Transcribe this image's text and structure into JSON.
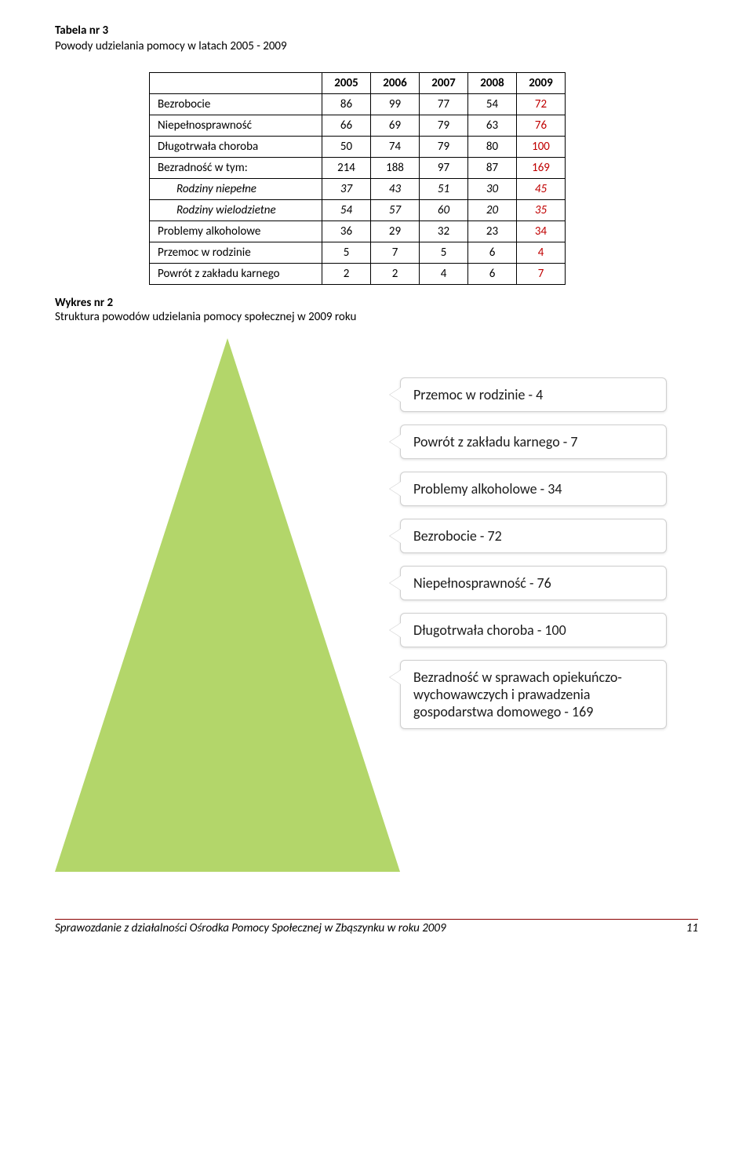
{
  "table_heading": "Tabela nr 3",
  "table_subheading": "Powody udzielania pomocy w latach 2005 - 2009",
  "table": {
    "columns": [
      "",
      "2005",
      "2006",
      "2007",
      "2008",
      "2009"
    ],
    "rows": [
      {
        "label": "Bezrobocie",
        "vals": [
          "86",
          "99",
          "77",
          "54",
          "72"
        ],
        "indent": false,
        "italic": false
      },
      {
        "label": "Niepełnosprawność",
        "vals": [
          "66",
          "69",
          "79",
          "63",
          "76"
        ],
        "indent": false,
        "italic": false
      },
      {
        "label": "Długotrwała choroba",
        "vals": [
          "50",
          "74",
          "79",
          "80",
          "100"
        ],
        "indent": false,
        "italic": false
      },
      {
        "label": "Bezradność w tym:",
        "vals": [
          "214",
          "188",
          "97",
          "87",
          "169"
        ],
        "indent": false,
        "italic": false
      },
      {
        "label": "Rodziny niepełne",
        "vals": [
          "37",
          "43",
          "51",
          "30",
          "45"
        ],
        "indent": true,
        "italic": true
      },
      {
        "label": "Rodziny wielodzietne",
        "vals": [
          "54",
          "57",
          "60",
          "20",
          "35"
        ],
        "indent": true,
        "italic": true
      },
      {
        "label": "Problemy alkoholowe",
        "vals": [
          "36",
          "29",
          "32",
          "23",
          "34"
        ],
        "indent": false,
        "italic": false
      },
      {
        "label": "Przemoc w rodzinie",
        "vals": [
          "5",
          "7",
          "5",
          "6",
          "4"
        ],
        "indent": false,
        "italic": false
      },
      {
        "label": "Powrót z zakładu karnego",
        "vals": [
          "2",
          "2",
          "4",
          "6",
          "7"
        ],
        "indent": false,
        "italic": false
      }
    ],
    "red_column_index": 4,
    "colors": {
      "red": "#c00000",
      "border": "#000000"
    }
  },
  "chart_heading": "Wykres nr  2",
  "chart_subheading": "Struktura powodów udzielania pomocy społecznej w 2009 roku",
  "pyramid": {
    "triangle_color": "#b3d66a",
    "callout_bg": "#ffffff",
    "callout_border": "#cfcfcf",
    "callout_shadow": "rgba(0,0,0,0.12)",
    "callout_fontsize": 18,
    "callout_text_color": "#1b1b1b",
    "items": [
      "Przemoc w rodzinie   -   4",
      "Powrót z zakładu  karnego  -  7",
      "Problemy alkoholowe  -  34",
      "Bezrobocie  -  72",
      "Niepełnosprawność  -  76",
      "Długotrwała choroba  -  100",
      "Bezradność w sprawach opiekuńczo-wychowawczych i prawadzenia gospodarstwa domowego      -     169"
    ]
  },
  "footer": {
    "text": "Sprawozdanie z działalności Ośrodka Pomocy Społecznej w Zbąszynku w roku 2009",
    "page": "11",
    "rule_color": "#8a0000"
  }
}
